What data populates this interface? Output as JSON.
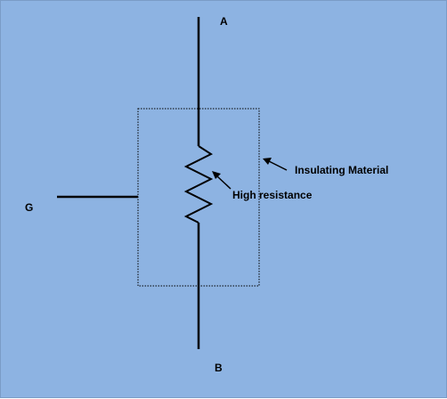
{
  "diagram": {
    "labels": {
      "terminal_a": "A",
      "terminal_b": "B",
      "terminal_g": "G",
      "insulating_material": "Insulating Material",
      "high_resistance": "High resistance"
    },
    "colors": {
      "background": "#8db3e2",
      "line": "#000000"
    }
  }
}
